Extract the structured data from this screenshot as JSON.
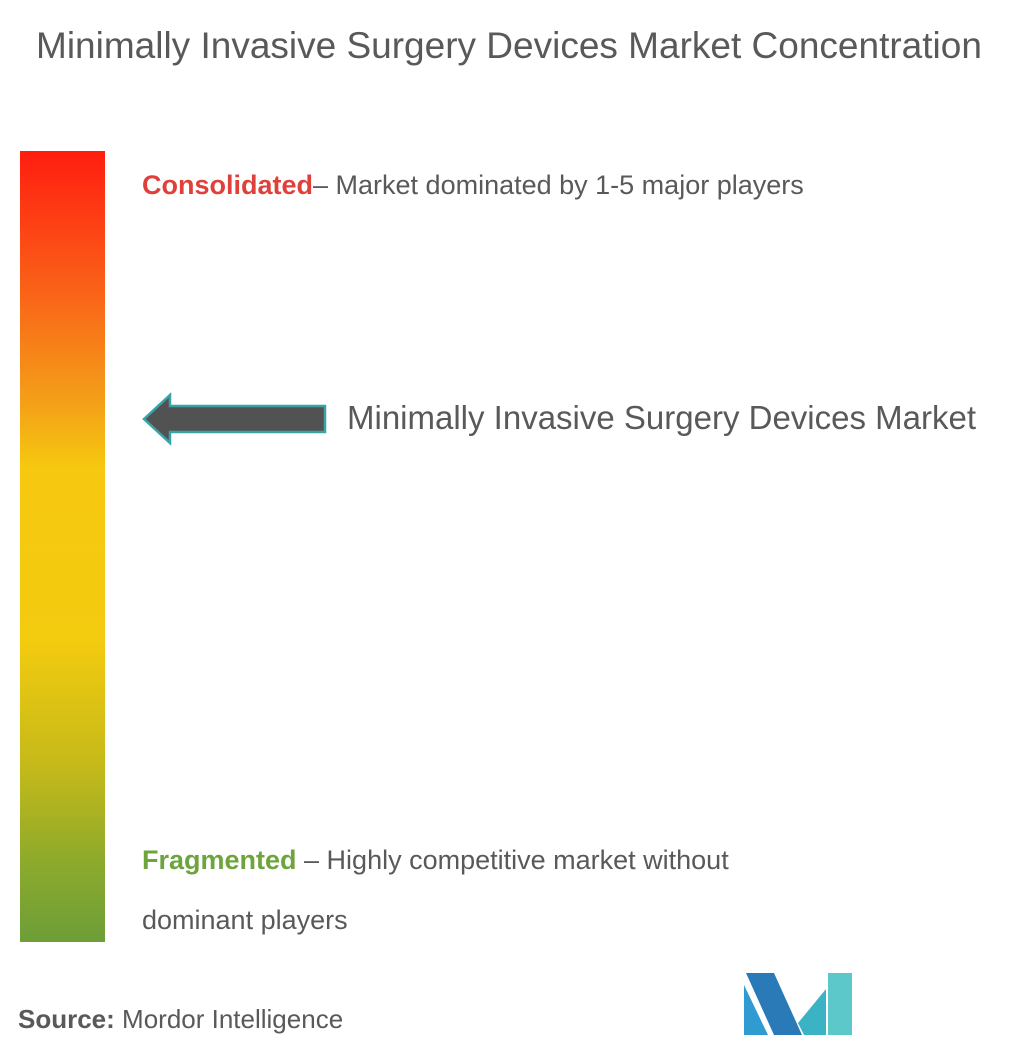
{
  "title": "Minimally Invasive Surgery Devices Market Concentration",
  "scale": {
    "top_color": "#ff1d10",
    "bottom_color": "#6d9e38",
    "consolidated": {
      "label": "Consolidated",
      "description": "– Market dominated by 1-5 major players",
      "color": "#e0403a"
    },
    "fragmented": {
      "label": "Fragmented",
      "description": " – Highly competitive market without dominant players",
      "color": "#6ea43e"
    }
  },
  "pointer": {
    "label": "Minimally Invasive Surgery Devices Market",
    "icon": "left-arrow-icon",
    "position_on_scale": 0.35
  },
  "footer": {
    "source_label": "Source:",
    "source_value": " Mordor Intelligence",
    "logo_icon": "mordor-intelligence-logo-icon"
  }
}
